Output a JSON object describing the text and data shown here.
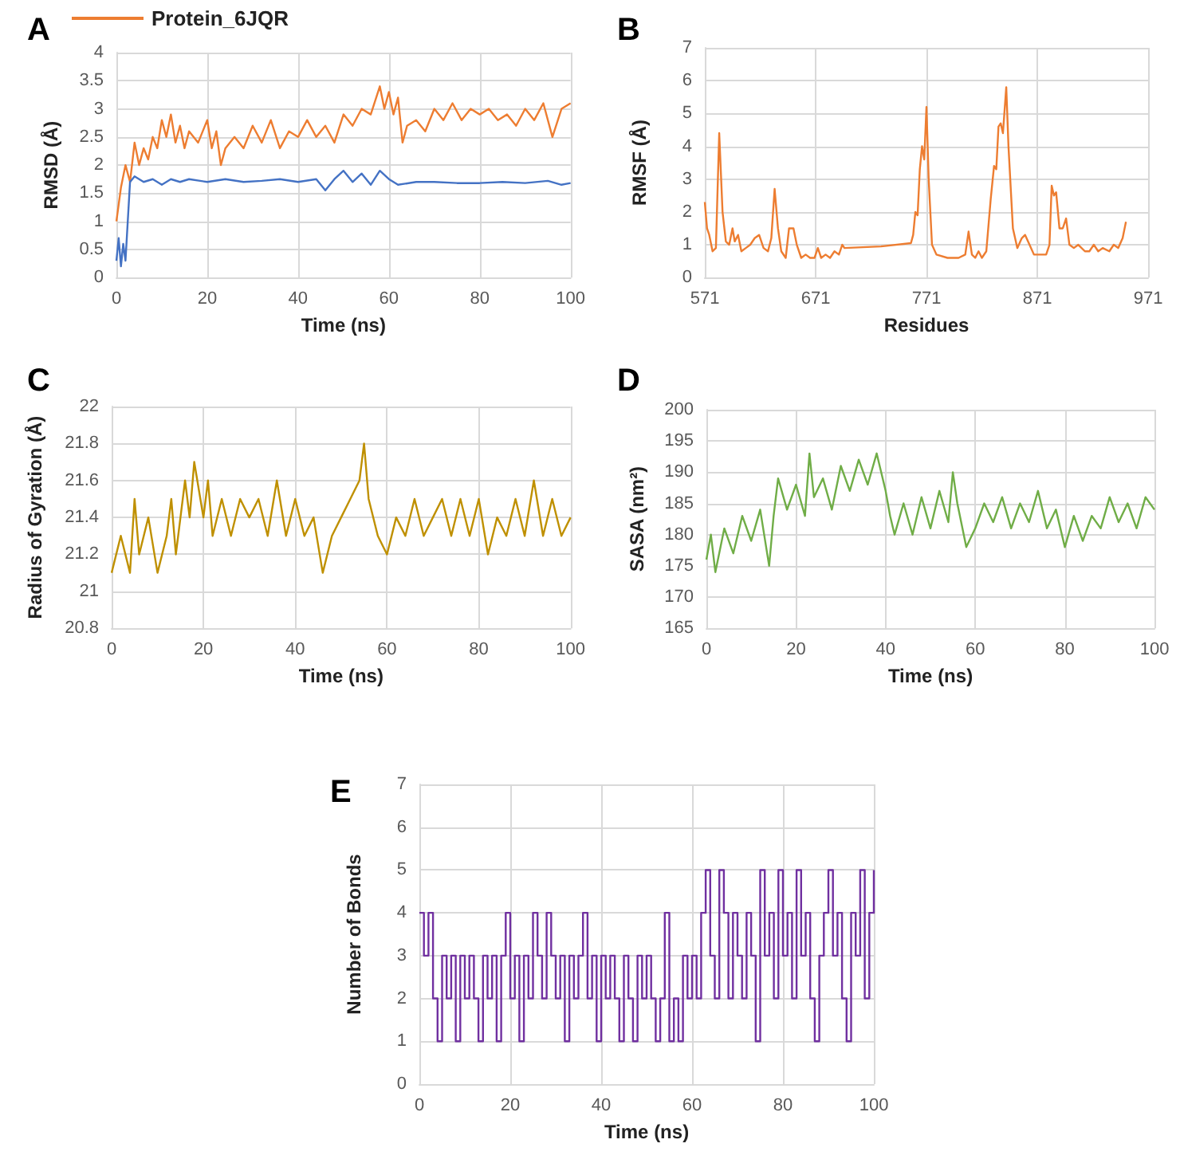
{
  "chart_data": [
    {
      "type": "line",
      "title": "A",
      "xlabel": "Time (ns)",
      "ylabel": "RMSD (Å)",
      "xlim": [
        0,
        100
      ],
      "xticks": [
        0,
        20,
        40,
        60,
        80,
        100
      ],
      "ylim": [
        0,
        4
      ],
      "yticks": [
        0,
        0.5,
        1,
        1.5,
        2,
        2.5,
        3,
        3.5,
        4
      ],
      "grid": true,
      "legend": "top left",
      "series": [
        {
          "name": "Protein_6JQR",
          "color": "#ed7d31",
          "x": [
            0,
            1,
            2,
            3,
            4,
            5,
            6,
            7,
            8,
            9,
            10,
            11,
            12,
            13,
            14,
            15,
            16,
            18,
            20,
            21,
            22,
            23,
            24,
            26,
            28,
            30,
            32,
            34,
            36,
            38,
            40,
            42,
            44,
            46,
            48,
            50,
            52,
            54,
            56,
            58,
            59,
            60,
            61,
            62,
            63,
            64,
            66,
            68,
            70,
            72,
            74,
            76,
            78,
            80,
            82,
            84,
            86,
            88,
            90,
            92,
            94,
            96,
            98,
            100
          ],
          "values": [
            1.0,
            1.6,
            2.0,
            1.7,
            2.4,
            2.0,
            2.3,
            2.1,
            2.5,
            2.3,
            2.8,
            2.5,
            2.9,
            2.4,
            2.7,
            2.3,
            2.6,
            2.4,
            2.8,
            2.3,
            2.6,
            2.0,
            2.3,
            2.5,
            2.3,
            2.7,
            2.4,
            2.8,
            2.3,
            2.6,
            2.5,
            2.8,
            2.5,
            2.7,
            2.4,
            2.9,
            2.7,
            3.0,
            2.9,
            3.4,
            3.0,
            3.3,
            2.9,
            3.2,
            2.4,
            2.7,
            2.8,
            2.6,
            3.0,
            2.8,
            3.1,
            2.8,
            3.0,
            2.9,
            3.0,
            2.8,
            2.9,
            2.7,
            3.0,
            2.8,
            3.1,
            2.5,
            3.0,
            3.1
          ]
        },
        {
          "color": "#4472c4",
          "x": [
            0,
            0.5,
            1,
            1.5,
            2,
            3,
            4,
            6,
            8,
            10,
            12,
            14,
            16,
            20,
            24,
            28,
            32,
            36,
            40,
            44,
            46,
            48,
            50,
            52,
            54,
            56,
            58,
            60,
            62,
            66,
            70,
            75,
            80,
            85,
            90,
            95,
            98,
            100
          ],
          "values": [
            0.3,
            0.7,
            0.2,
            0.6,
            0.3,
            1.7,
            1.8,
            1.7,
            1.75,
            1.65,
            1.75,
            1.7,
            1.75,
            1.7,
            1.75,
            1.7,
            1.72,
            1.75,
            1.7,
            1.75,
            1.55,
            1.75,
            1.9,
            1.7,
            1.85,
            1.65,
            1.9,
            1.75,
            1.65,
            1.7,
            1.7,
            1.68,
            1.68,
            1.7,
            1.68,
            1.72,
            1.65,
            1.68
          ]
        }
      ]
    },
    {
      "type": "line",
      "title": "B",
      "xlabel": "Residues",
      "ylabel": "RMSF (Å)",
      "xlim": [
        571,
        971
      ],
      "xticks": [
        571,
        671,
        771,
        871,
        971
      ],
      "ylim": [
        0,
        7
      ],
      "yticks": [
        0,
        1,
        2,
        3,
        4,
        5,
        6,
        7
      ],
      "grid": true,
      "series": [
        {
          "color": "#ed7d31",
          "x": [
            571,
            573,
            575,
            578,
            581,
            584,
            587,
            590,
            593,
            596,
            598,
            601,
            604,
            608,
            612,
            616,
            620,
            624,
            628,
            631,
            634,
            637,
            640,
            644,
            647,
            651,
            654,
            658,
            662,
            666,
            670,
            673,
            676,
            680,
            684,
            688,
            692,
            695,
            697,
            730,
            757,
            759,
            761,
            763,
            765,
            767,
            769,
            771,
            773,
            776,
            780,
            790,
            800,
            806,
            809,
            812,
            815,
            818,
            821,
            825,
            829,
            832,
            834,
            836,
            838,
            840,
            843,
            845,
            849,
            853,
            857,
            860,
            864,
            868,
            874,
            879,
            882,
            884,
            886,
            888,
            891,
            894,
            897,
            900,
            904,
            908,
            914,
            918,
            922,
            926,
            930,
            936,
            940,
            944,
            948,
            951
          ],
          "values": [
            2.3,
            1.5,
            1.3,
            0.8,
            0.9,
            4.4,
            2.0,
            1.1,
            1.0,
            1.5,
            1.1,
            1.3,
            0.8,
            0.9,
            1.0,
            1.2,
            1.3,
            0.9,
            0.8,
            1.2,
            2.7,
            1.5,
            0.8,
            0.6,
            1.5,
            1.5,
            1.0,
            0.6,
            0.7,
            0.6,
            0.6,
            0.9,
            0.6,
            0.7,
            0.6,
            0.8,
            0.7,
            1.0,
            0.9,
            0.95,
            1.05,
            1.3,
            2.0,
            1.9,
            3.3,
            4.0,
            3.6,
            5.2,
            3.0,
            1.0,
            0.7,
            0.6,
            0.6,
            0.7,
            1.4,
            0.7,
            0.6,
            0.8,
            0.6,
            0.8,
            2.4,
            3.4,
            3.3,
            4.6,
            4.7,
            4.4,
            5.8,
            4.0,
            1.5,
            0.9,
            1.2,
            1.3,
            1.0,
            0.7,
            0.7,
            0.7,
            1.0,
            2.8,
            2.5,
            2.6,
            1.5,
            1.5,
            1.8,
            1.0,
            0.9,
            1.0,
            0.8,
            0.8,
            1.0,
            0.8,
            0.9,
            0.8,
            1.0,
            0.9,
            1.2,
            1.7
          ]
        }
      ]
    },
    {
      "type": "line",
      "title": "C",
      "xlabel": "Time (ns)",
      "ylabel": "Radius of Gyration (Å)",
      "xlim": [
        0,
        100
      ],
      "xticks": [
        0,
        20,
        40,
        60,
        80,
        100
      ],
      "ylim": [
        20.8,
        22
      ],
      "yticks": [
        20.8,
        21,
        21.2,
        21.4,
        21.6,
        21.8,
        22
      ],
      "grid": true,
      "series": [
        {
          "color": "#bf9000",
          "x": [
            0,
            2,
            4,
            5,
            6,
            8,
            10,
            12,
            13,
            14,
            16,
            17,
            18,
            20,
            21,
            22,
            24,
            26,
            28,
            30,
            32,
            34,
            36,
            38,
            40,
            42,
            44,
            46,
            48,
            50,
            52,
            54,
            55,
            56,
            58,
            60,
            62,
            64,
            66,
            68,
            70,
            72,
            74,
            76,
            78,
            80,
            82,
            84,
            86,
            88,
            90,
            92,
            94,
            96,
            98,
            100
          ],
          "values": [
            21.1,
            21.3,
            21.1,
            21.5,
            21.2,
            21.4,
            21.1,
            21.3,
            21.5,
            21.2,
            21.6,
            21.4,
            21.7,
            21.4,
            21.6,
            21.3,
            21.5,
            21.3,
            21.5,
            21.4,
            21.5,
            21.3,
            21.6,
            21.3,
            21.5,
            21.3,
            21.4,
            21.1,
            21.3,
            21.4,
            21.5,
            21.6,
            21.8,
            21.5,
            21.3,
            21.2,
            21.4,
            21.3,
            21.5,
            21.3,
            21.4,
            21.5,
            21.3,
            21.5,
            21.3,
            21.5,
            21.2,
            21.4,
            21.3,
            21.5,
            21.3,
            21.6,
            21.3,
            21.5,
            21.3,
            21.4
          ]
        }
      ]
    },
    {
      "type": "line",
      "title": "D",
      "xlabel": "Time (ns)",
      "ylabel": "SASA (nm²)",
      "xlim": [
        0,
        100
      ],
      "xticks": [
        0,
        20,
        40,
        60,
        80,
        100
      ],
      "ylim": [
        165,
        200
      ],
      "yticks": [
        165,
        170,
        175,
        180,
        185,
        190,
        195,
        200
      ],
      "grid": true,
      "series": [
        {
          "color": "#70ad47",
          "x": [
            0,
            1,
            2,
            4,
            6,
            8,
            10,
            12,
            14,
            15,
            16,
            18,
            20,
            22,
            23,
            24,
            26,
            28,
            30,
            32,
            34,
            36,
            38,
            40,
            41,
            42,
            44,
            46,
            48,
            50,
            52,
            54,
            55,
            56,
            58,
            60,
            62,
            64,
            66,
            68,
            70,
            72,
            74,
            76,
            78,
            80,
            82,
            84,
            86,
            88,
            90,
            92,
            94,
            96,
            98,
            100
          ],
          "values": [
            176,
            180,
            174,
            181,
            177,
            183,
            179,
            184,
            175,
            183,
            189,
            184,
            188,
            183,
            193,
            186,
            189,
            184,
            191,
            187,
            192,
            188,
            193,
            187,
            183,
            180,
            185,
            180,
            186,
            181,
            187,
            182,
            190,
            185,
            178,
            181,
            185,
            182,
            186,
            181,
            185,
            182,
            187,
            181,
            184,
            178,
            183,
            179,
            183,
            181,
            186,
            182,
            185,
            181,
            186,
            184
          ]
        }
      ]
    },
    {
      "type": "step",
      "title": "E",
      "xlabel": "Time (ns)",
      "ylabel": "Number of Bonds",
      "xlim": [
        0,
        100
      ],
      "xticks": [
        0,
        20,
        40,
        60,
        80,
        100
      ],
      "ylim": [
        0,
        7
      ],
      "yticks": [
        0,
        1,
        2,
        3,
        4,
        5,
        6,
        7
      ],
      "grid": true,
      "series": [
        {
          "color": "#7030a0",
          "x": [
            0,
            1,
            2,
            3,
            4,
            5,
            6,
            7,
            8,
            9,
            10,
            11,
            12,
            13,
            14,
            15,
            16,
            17,
            18,
            19,
            20,
            21,
            22,
            23,
            24,
            25,
            26,
            27,
            28,
            29,
            30,
            31,
            32,
            33,
            34,
            35,
            36,
            37,
            38,
            39,
            40,
            41,
            42,
            43,
            44,
            45,
            46,
            47,
            48,
            49,
            50,
            51,
            52,
            53,
            54,
            55,
            56,
            57,
            58,
            59,
            60,
            61,
            62,
            63,
            64,
            65,
            66,
            67,
            68,
            69,
            70,
            71,
            72,
            73,
            74,
            75,
            76,
            77,
            78,
            79,
            80,
            81,
            82,
            83,
            84,
            85,
            86,
            87,
            88,
            89,
            90,
            91,
            92,
            93,
            94,
            95,
            96,
            97,
            98,
            99,
            100
          ],
          "values": [
            4,
            3,
            4,
            2,
            1,
            3,
            2,
            3,
            1,
            3,
            2,
            3,
            2,
            1,
            3,
            2,
            3,
            1,
            3,
            4,
            2,
            3,
            1,
            3,
            2,
            4,
            3,
            2,
            4,
            3,
            2,
            3,
            1,
            3,
            2,
            3,
            4,
            2,
            3,
            1,
            3,
            2,
            3,
            2,
            1,
            3,
            2,
            1,
            3,
            2,
            3,
            2,
            1,
            2,
            4,
            1,
            2,
            1,
            3,
            2,
            3,
            2,
            4,
            5,
            3,
            2,
            5,
            4,
            2,
            4,
            3,
            2,
            4,
            3,
            1,
            5,
            3,
            4,
            2,
            5,
            3,
            4,
            2,
            5,
            3,
            4,
            2,
            1,
            3,
            4,
            5,
            3,
            4,
            2,
            1,
            4,
            3,
            5,
            2,
            4,
            5
          ]
        }
      ]
    }
  ]
}
